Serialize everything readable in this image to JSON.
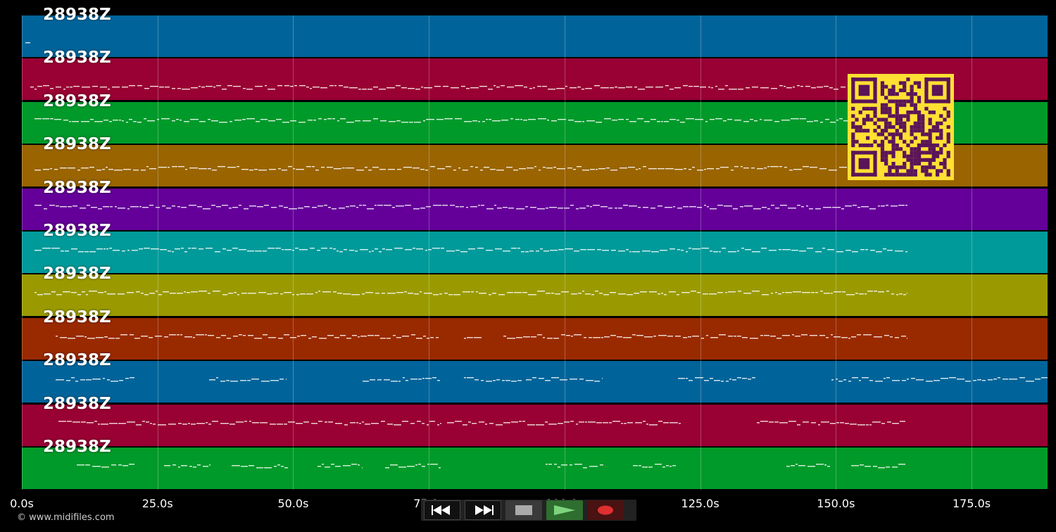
{
  "tracks": [
    {
      "name": "28938Z",
      "color": "#00649a"
    },
    {
      "name": "28938Z",
      "color": "#990033"
    },
    {
      "name": "28938Z",
      "color": "#009a2a"
    },
    {
      "name": "28938Z",
      "color": "#9a6400"
    },
    {
      "name": "28938Z",
      "color": "#640099"
    },
    {
      "name": "28938Z",
      "color": "#009a9a"
    },
    {
      "name": "28938Z",
      "color": "#9a9a00"
    },
    {
      "name": "28938Z",
      "color": "#992a00"
    },
    {
      "name": "28938Z",
      "color": "#00649a"
    },
    {
      "name": "28938Z",
      "color": "#990033"
    },
    {
      "name": "28938Z",
      "color": "#009a2a"
    }
  ],
  "timeline": {
    "ticks": [
      "0.0s",
      "25.0s",
      "50.0s",
      "75.0s",
      "100.0s",
      "125.0s",
      "150.0s",
      "175.0s"
    ],
    "tick_values_s": [
      0,
      25,
      50,
      75,
      100,
      125,
      150,
      175
    ],
    "max_s": 189
  },
  "copyright": "© www.midifiles.com",
  "transport": {
    "rewind_icon": "rewind-icon",
    "fast_forward_icon": "fast-forward-icon",
    "stop_icon": "stop-icon",
    "play_icon": "play-icon",
    "record_icon": "record-icon"
  },
  "qr_code": {
    "fg": "#5a1458",
    "bg": "#ffe033"
  }
}
